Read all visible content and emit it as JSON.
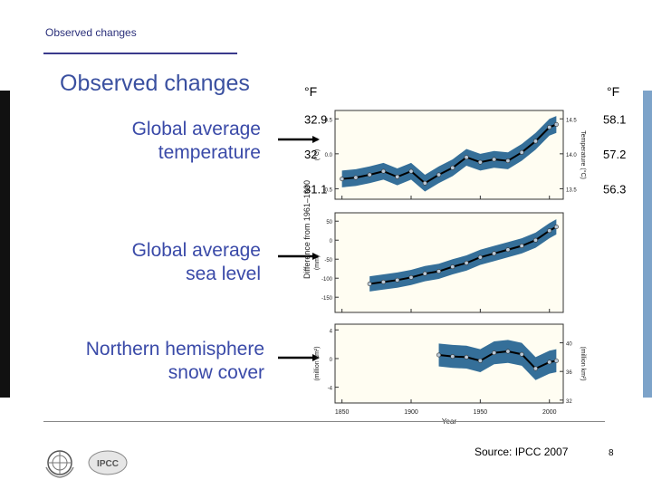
{
  "header": {
    "text": "Observed changes"
  },
  "slide": {
    "title": "Observed changes",
    "labels": {
      "temperature": [
        "Global average",
        "temperature"
      ],
      "sea_level": [
        "Global average",
        "sea level"
      ],
      "snow": [
        "Northern hemisphere",
        "snow cover"
      ]
    }
  },
  "footer": {
    "source": "Source: IPCC 2007",
    "page": "8"
  },
  "logos": {
    "un": "un-emblem",
    "ipcc": "IPCC"
  },
  "colors": {
    "band": "#1f5f8f",
    "line": "#000000",
    "point_fill": "#b8c8d8",
    "panel": "#fffdf2",
    "accent": "#3a4aa8"
  },
  "chart_data": {
    "type": "line",
    "ylabel_shared": "Difference from 1961–1990",
    "x": {
      "label": "Year",
      "ticks": [
        1850,
        1900,
        1950,
        2000
      ],
      "range": [
        1845,
        2010
      ]
    },
    "panels": [
      {
        "id": "temperature",
        "unit_left": "(°C)",
        "unit_right": "Temperature (°C)",
        "left_ticks": [
          "0.5",
          "0.0",
          "-0.5"
        ],
        "left_tick_values": [
          0.5,
          0.0,
          -0.5
        ],
        "right_ticks": [
          "14.5",
          "14.0",
          "13.5"
        ],
        "right_tick_values": [
          0.5,
          0.0,
          -0.5
        ],
        "f_left_header": "°F",
        "f_right_header": "°F",
        "f_left": [
          "32.9",
          "32",
          "31.1"
        ],
        "f_right": [
          "58.1",
          "57.2",
          "56.3"
        ],
        "ylim": [
          -0.65,
          0.62
        ],
        "years": [
          1850,
          1860,
          1870,
          1880,
          1890,
          1900,
          1910,
          1920,
          1930,
          1940,
          1950,
          1960,
          1970,
          1980,
          1990,
          2000,
          2005
        ],
        "values": [
          -0.36,
          -0.34,
          -0.3,
          -0.25,
          -0.33,
          -0.25,
          -0.42,
          -0.3,
          -0.2,
          -0.05,
          -0.12,
          -0.08,
          -0.1,
          0.02,
          0.18,
          0.38,
          0.42
        ],
        "band": 0.12
      },
      {
        "id": "sea_level",
        "unit_left": "(mm)",
        "left_ticks": [
          "50",
          "0",
          "-50",
          "-100",
          "-150"
        ],
        "left_tick_values": [
          50,
          0,
          -50,
          -100,
          -150
        ],
        "ylim": [
          -190,
          72
        ],
        "years": [
          1870,
          1880,
          1890,
          1900,
          1910,
          1920,
          1930,
          1940,
          1950,
          1960,
          1970,
          1980,
          1990,
          2000,
          2005
        ],
        "values": [
          -115,
          -110,
          -105,
          -98,
          -88,
          -82,
          -70,
          -60,
          -45,
          -35,
          -25,
          -15,
          0,
          25,
          35
        ],
        "band": 20
      },
      {
        "id": "snow",
        "unit_left": "(million km²)",
        "unit_right": "(million km²)",
        "left_ticks": [
          "4",
          "0",
          "-4"
        ],
        "left_tick_values": [
          4,
          0,
          -4
        ],
        "right_ticks": [
          "40",
          "36",
          "32"
        ],
        "right_tick_values": [
          2.2,
          -1.8,
          -5.8
        ],
        "ylim": [
          -6.2,
          4.8
        ],
        "years": [
          1920,
          1930,
          1940,
          1950,
          1960,
          1970,
          1980,
          1990,
          2000,
          2005
        ],
        "values": [
          0.5,
          0.3,
          0.2,
          -0.3,
          0.8,
          1.0,
          0.6,
          -1.4,
          -0.5,
          -0.3
        ],
        "band": 1.6
      }
    ]
  }
}
